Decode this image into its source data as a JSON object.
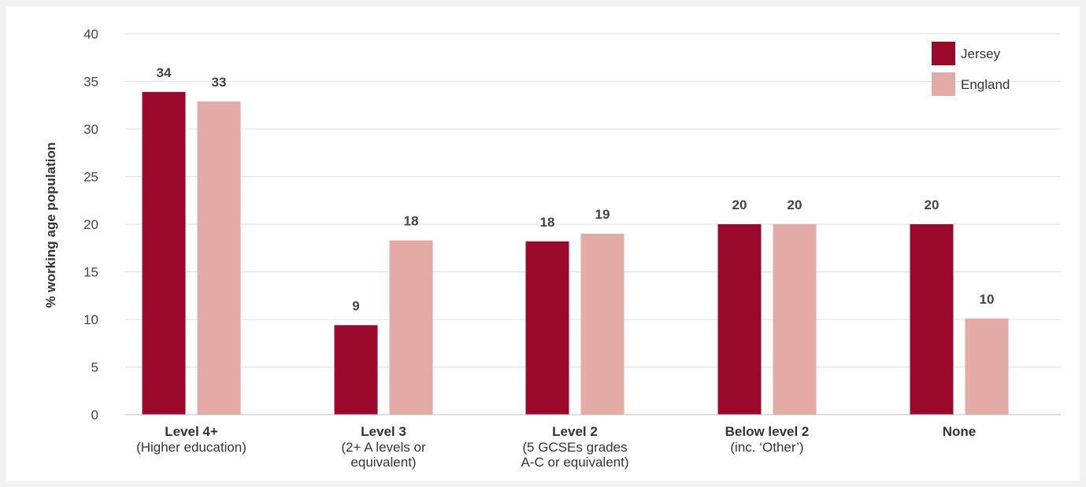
{
  "chart_data": {
    "type": "bar",
    "ylabel": "% working age population",
    "ylim": [
      0,
      40
    ],
    "yticks": [
      0,
      5,
      10,
      15,
      20,
      25,
      30,
      35,
      40
    ],
    "grid": true,
    "legend_position": "top-right",
    "categories": [
      {
        "main": "Level 4+",
        "sub": [
          "(Higher education)"
        ]
      },
      {
        "main": "Level 3",
        "sub": [
          "(2+ A levels or",
          "equivalent)"
        ]
      },
      {
        "main": "Level 2",
        "sub": [
          "(5 GCSEs grades",
          "A-C or equivalent)"
        ]
      },
      {
        "main": "Below level 2",
        "sub": [
          "(inc. ‘Other’)"
        ]
      },
      {
        "main": "None",
        "sub": []
      }
    ],
    "series": [
      {
        "name": "Jersey",
        "color": "#9b0a2c",
        "values": [
          33.9,
          9.4,
          18.2,
          20,
          20
        ],
        "labels": [
          "34",
          "9",
          "18",
          "20",
          "20"
        ]
      },
      {
        "name": "England",
        "color": "#e3aaa6",
        "values": [
          32.9,
          18.3,
          19,
          20,
          10.1
        ],
        "labels": [
          "33",
          "18",
          "19",
          "20",
          "10"
        ]
      }
    ]
  }
}
